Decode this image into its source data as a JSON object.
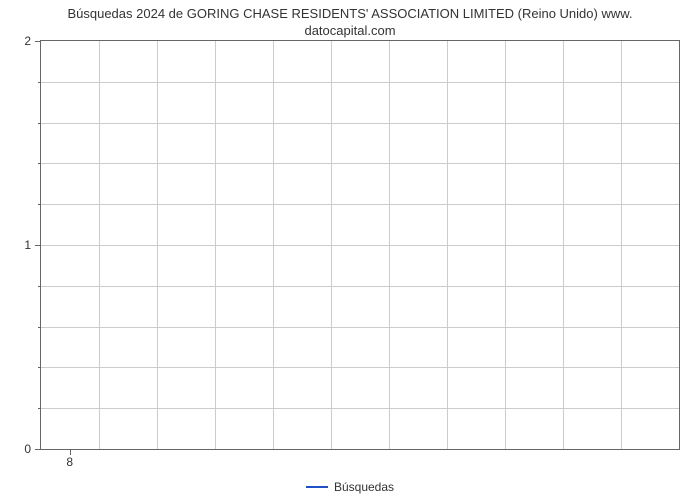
{
  "chart": {
    "type": "line",
    "title_line1": "Búsquedas 2024 de GORING CHASE RESIDENTS' ASSOCIATION LIMITED (Reino Unido) www.",
    "title_line2": "datocapital.com",
    "title_fontsize": 13,
    "title_color": "#333333",
    "background_color": "#ffffff",
    "plot_border_color": "#666666",
    "grid_color": "#cccccc",
    "axis_label_fontsize": 12,
    "axis_label_color": "#333333",
    "ylim": [
      0,
      2
    ],
    "y_major_ticks": [
      0,
      1,
      2
    ],
    "y_minor_tick_count_between": 4,
    "x_ticks": [
      "8"
    ],
    "x_tick_position_fraction": 0.045,
    "v_gridlines_count": 11,
    "legend": {
      "label": "Búsquedas",
      "color": "#1f50c4",
      "line_width": 2.5,
      "position": "bottom-center"
    },
    "series": [
      {
        "name": "Búsquedas",
        "color": "#1f50c4",
        "data": []
      }
    ]
  }
}
